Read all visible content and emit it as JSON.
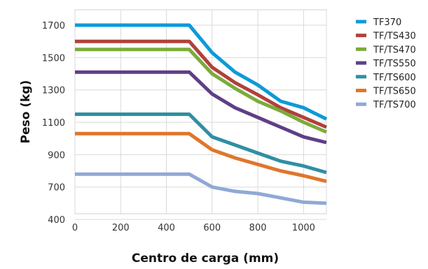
{
  "chart_data": {
    "type": "line",
    "xlabel": "Centro de carga (mm)",
    "ylabel": "Peso (kg)",
    "x_ticks": [
      0,
      200,
      400,
      600,
      800,
      1000
    ],
    "y_ticks": [
      400,
      700,
      900,
      1100,
      1300,
      1500,
      1700
    ],
    "y_tick_positions": [
      0,
      1,
      2,
      3,
      4,
      5,
      6
    ],
    "xlim": [
      0,
      1100
    ],
    "grid": true,
    "legend_position": "right",
    "x": [
      0,
      100,
      200,
      300,
      400,
      500,
      600,
      700,
      800,
      900,
      1000,
      1100
    ],
    "series": [
      {
        "name": "TF370",
        "color": "#0c9ad8",
        "values": [
          1700,
          1700,
          1700,
          1700,
          1700,
          1700,
          1530,
          1410,
          1330,
          1230,
          1190,
          1120
        ]
      },
      {
        "name": "TF/TS430",
        "color": "#b0413a",
        "values": [
          1600,
          1600,
          1600,
          1600,
          1600,
          1600,
          1440,
          1345,
          1270,
          1190,
          1130,
          1070
        ]
      },
      {
        "name": "TF/TS470",
        "color": "#7bab3b",
        "values": [
          1550,
          1550,
          1550,
          1550,
          1550,
          1550,
          1400,
          1310,
          1230,
          1170,
          1100,
          1040
        ]
      },
      {
        "name": "TF/TS550",
        "color": "#5f3f86",
        "values": [
          1410,
          1410,
          1410,
          1410,
          1410,
          1410,
          1275,
          1190,
          1130,
          1070,
          1010,
          975
        ]
      },
      {
        "name": "TF/TS600",
        "color": "#2f8fa3",
        "values": [
          1150,
          1150,
          1150,
          1150,
          1150,
          1150,
          1010,
          960,
          910,
          860,
          830,
          790
        ]
      },
      {
        "name": "TF/TS650",
        "color": "#e0762b",
        "values": [
          1030,
          1030,
          1030,
          1030,
          1030,
          1030,
          930,
          880,
          840,
          800,
          770,
          735
        ]
      },
      {
        "name": "TF/TS700",
        "color": "#8fa9d6",
        "values": [
          780,
          780,
          780,
          780,
          780,
          780,
          700,
          660,
          640,
          600,
          560,
          550
        ]
      }
    ]
  }
}
